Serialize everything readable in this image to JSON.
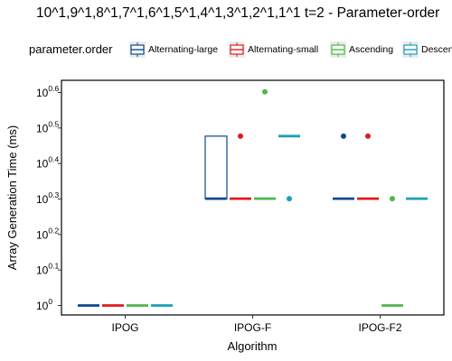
{
  "chart_data": {
    "type": "boxplot",
    "title": "10^1,9^1,8^1,7^1,6^1,5^1,4^1,3^1,2^1,1^1 t=2 - Parameter-order",
    "xlabel": "Algorithm",
    "ylabel": "Array Generation Time (ms)",
    "y_scale": "log10",
    "ylim": [
      1,
      4.3
    ],
    "y_ticks": [
      {
        "value": 1,
        "base": "10",
        "exp": "0"
      },
      {
        "value": 1.259,
        "base": "10",
        "exp": "0.1"
      },
      {
        "value": 1.585,
        "base": "10",
        "exp": "0.2"
      },
      {
        "value": 1.995,
        "base": "10",
        "exp": "0.3"
      },
      {
        "value": 2.512,
        "base": "10",
        "exp": "0.4"
      },
      {
        "value": 3.162,
        "base": "10",
        "exp": "0.5"
      },
      {
        "value": 3.981,
        "base": "10",
        "exp": "0.6"
      }
    ],
    "categories": [
      "IPOG",
      "IPOG-F",
      "IPOG-F2"
    ],
    "legend": {
      "title": "parameter.order",
      "position": "top"
    },
    "grid": false,
    "series": [
      {
        "name": "Alternating-large",
        "color": "#0a4a8c",
        "boxes": [
          {
            "q1": 1,
            "median": 1,
            "q3": 1,
            "outliers": []
          },
          {
            "q1": 2,
            "median": 2,
            "q3": 3,
            "outliers": []
          },
          {
            "q1": 2,
            "median": 2,
            "q3": 2,
            "outliers": [
              3
            ]
          }
        ]
      },
      {
        "name": "Alternating-small",
        "color": "#e01a1a",
        "boxes": [
          {
            "q1": 1,
            "median": 1,
            "q3": 1,
            "outliers": []
          },
          {
            "q1": 2,
            "median": 2,
            "q3": 2,
            "outliers": [
              3
            ]
          },
          {
            "q1": 2,
            "median": 2,
            "q3": 2,
            "outliers": [
              3
            ]
          }
        ]
      },
      {
        "name": "Ascending",
        "color": "#4db848",
        "boxes": [
          {
            "q1": 1,
            "median": 1,
            "q3": 1,
            "outliers": []
          },
          {
            "q1": 2,
            "median": 2,
            "q3": 2,
            "outliers": [
              4
            ]
          },
          {
            "q1": 1,
            "median": 1,
            "q3": 1,
            "outliers": [
              2
            ]
          }
        ]
      },
      {
        "name": "Descending",
        "color": "#1a9fb8",
        "boxes": [
          {
            "q1": 1,
            "median": 1,
            "q3": 1,
            "outliers": []
          },
          {
            "q1": 3,
            "median": 3,
            "q3": 3,
            "outliers": [
              2
            ]
          },
          {
            "q1": 2,
            "median": 2,
            "q3": 2,
            "outliers": []
          }
        ]
      }
    ]
  }
}
